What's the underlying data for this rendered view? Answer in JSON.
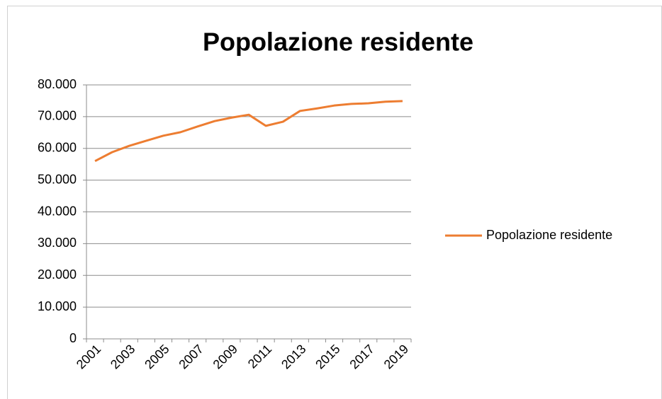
{
  "chart_data": {
    "type": "line",
    "title": "Popolazione residente",
    "categories": [
      "2001",
      null,
      "2003",
      null,
      "2005",
      null,
      "2007",
      null,
      "2009",
      null,
      "2011",
      null,
      "2013",
      null,
      "2015",
      null,
      "2017",
      null,
      "2019"
    ],
    "series": [
      {
        "name": "Popolazione residente",
        "color": "#ed7d31",
        "values": [
          56000,
          58800,
          60800,
          62400,
          64000,
          65100,
          66900,
          68600,
          69700,
          70600,
          67100,
          68400,
          71800,
          72600,
          73500,
          74000,
          74200,
          74700,
          74900
        ]
      }
    ],
    "ylim": [
      0,
      80000
    ],
    "yticks": [
      0,
      {
        "value": 10000,
        "label": "10.000"
      },
      {
        "value": 20000,
        "label": "20.000"
      },
      {
        "value": 30000,
        "label": "30.000"
      },
      {
        "value": 40000,
        "label": "40.000"
      },
      {
        "value": 50000,
        "label": "50.000"
      },
      {
        "value": 60000,
        "label": "60.000"
      },
      {
        "value": 70000,
        "label": "70.000"
      },
      {
        "value": 80000,
        "label": "80.000"
      }
    ],
    "grid": true,
    "legend": "right"
  }
}
